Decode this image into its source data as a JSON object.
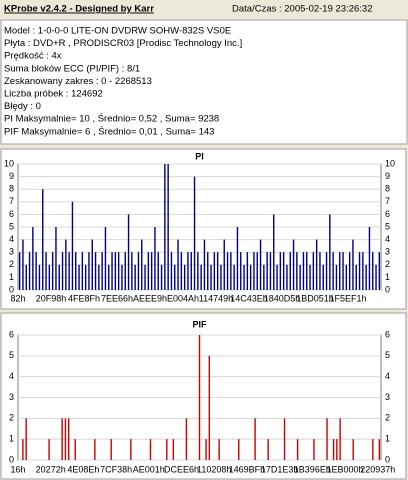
{
  "header": {
    "title": "KProbe v2.4.2 - Designed by Karr",
    "datetime": "Data/Czas : 2005-02-19 23:26:32",
    "lines": [
      "Model : 1-0-0-0 LITE-ON DVDRW SOHW-832S  VS0E",
      "Płyta : DVD+R , PRODISCR03 [Prodisc Technology Inc.]",
      "Prędkość : 4x",
      "Suma bloków ECC (PI/PIF) : 8/1",
      "Zeskanowany zakres : 0 - 2268513",
      "Liczba próbek : 124692",
      "Błędy : 0",
      "PI Maksymalnie= 10 , Średnio= 0,52 , Suma= 9238",
      "PIF Maksymalnie= 6 , Średnio= 0,01 , Suma= 143"
    ]
  },
  "chart_data": [
    {
      "type": "bar",
      "title": "PI",
      "color": "#000080",
      "grid": true,
      "ylim": [
        0,
        10
      ],
      "yticks": [
        0,
        1,
        2,
        3,
        4,
        5,
        6,
        7,
        8,
        9,
        10
      ],
      "categories": [
        "82h",
        null,
        null,
        null,
        null,
        null,
        null,
        null,
        null,
        null,
        "20F98h",
        null,
        null,
        null,
        null,
        null,
        null,
        null,
        null,
        null,
        "4FE8Fh",
        null,
        null,
        null,
        null,
        null,
        null,
        null,
        null,
        null,
        "7EE66h",
        null,
        null,
        null,
        null,
        null,
        null,
        null,
        null,
        null,
        "AEEE9h",
        null,
        null,
        null,
        null,
        null,
        null,
        null,
        null,
        null,
        "E004Ah",
        null,
        null,
        null,
        null,
        null,
        null,
        null,
        null,
        null,
        "114749h",
        null,
        null,
        null,
        null,
        null,
        null,
        null,
        null,
        null,
        "14C43Eh",
        null,
        null,
        null,
        null,
        null,
        null,
        null,
        null,
        null,
        "1840D5h",
        null,
        null,
        null,
        null,
        null,
        null,
        null,
        null,
        null,
        "1BD051h",
        null,
        null,
        null,
        null,
        null,
        null,
        null,
        null,
        null,
        "1F5EF1h",
        null,
        null,
        null,
        null,
        null,
        null,
        null,
        null,
        null
      ],
      "values": [
        3,
        4,
        2,
        3,
        5,
        3,
        2,
        8,
        3,
        2,
        3,
        5,
        2,
        3,
        4,
        3,
        7,
        3,
        2,
        3,
        2,
        3,
        4,
        3,
        2,
        3,
        5,
        2,
        3,
        3,
        3,
        2,
        3,
        6,
        3,
        2,
        3,
        4,
        2,
        3,
        3,
        5,
        3,
        2,
        10,
        10,
        3,
        2,
        4,
        3,
        2,
        3,
        3,
        9,
        3,
        2,
        4,
        3,
        2,
        3,
        3,
        2,
        4,
        3,
        3,
        2,
        5,
        3,
        2,
        3,
        2,
        3,
        3,
        4,
        2,
        3,
        3,
        6,
        2,
        3,
        3,
        2,
        3,
        4,
        3,
        2,
        3,
        3,
        2,
        3,
        4,
        3,
        2,
        3,
        6,
        3,
        2,
        3,
        3,
        2,
        3,
        4,
        2,
        3,
        3,
        2,
        5,
        3,
        2,
        3
      ]
    },
    {
      "type": "bar",
      "title": "PIF",
      "color": "#cc0000",
      "grid": true,
      "ylim": [
        0,
        6
      ],
      "yticks": [
        0,
        1,
        2,
        3,
        4,
        5,
        6
      ],
      "categories": [
        "16h",
        null,
        null,
        null,
        null,
        null,
        null,
        null,
        null,
        null,
        "20272h",
        null,
        null,
        null,
        null,
        null,
        null,
        null,
        null,
        null,
        "4E08Eh",
        null,
        null,
        null,
        null,
        null,
        null,
        null,
        null,
        null,
        "7CF38h",
        null,
        null,
        null,
        null,
        null,
        null,
        null,
        null,
        null,
        "AE001h",
        null,
        null,
        null,
        null,
        null,
        null,
        null,
        null,
        null,
        "DCEE6h",
        null,
        null,
        null,
        null,
        null,
        null,
        null,
        null,
        null,
        "110208h",
        null,
        null,
        null,
        null,
        null,
        null,
        null,
        null,
        null,
        "1469BFh",
        null,
        null,
        null,
        null,
        null,
        null,
        null,
        null,
        null,
        "17D1E3h",
        null,
        null,
        null,
        null,
        null,
        null,
        null,
        null,
        null,
        "1B396Eh",
        null,
        null,
        null,
        null,
        null,
        null,
        null,
        null,
        null,
        "1EB000h",
        null,
        null,
        null,
        null,
        null,
        null,
        null,
        null,
        null,
        "220937h"
      ],
      "values": [
        0,
        1,
        2,
        0,
        0,
        0,
        0,
        0,
        0,
        1,
        0,
        0,
        0,
        2,
        2,
        2,
        0,
        1,
        0,
        0,
        0,
        0,
        0,
        1,
        0,
        0,
        0,
        0,
        1,
        0,
        0,
        0,
        0,
        0,
        1,
        0,
        0,
        0,
        0,
        0,
        1,
        0,
        0,
        0,
        0,
        1,
        0,
        1,
        0,
        0,
        0,
        2,
        0,
        0,
        0,
        6,
        0,
        1,
        5,
        0,
        0,
        1,
        0,
        0,
        0,
        0,
        0,
        1,
        0,
        0,
        0,
        0,
        2,
        0,
        0,
        0,
        1,
        0,
        0,
        0,
        0,
        2,
        0,
        0,
        0,
        1,
        0,
        0,
        0,
        0,
        1,
        0,
        0,
        0,
        2,
        0,
        1,
        1,
        2,
        0,
        0,
        0,
        1,
        0,
        0,
        0,
        0,
        0,
        1,
        0,
        1
      ]
    }
  ]
}
